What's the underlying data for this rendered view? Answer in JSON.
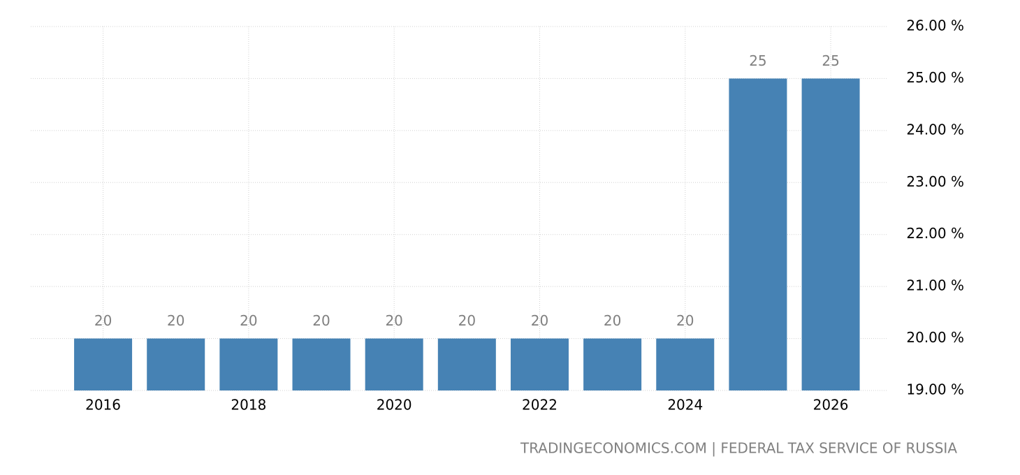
{
  "chart_data": {
    "type": "bar",
    "categories": [
      "2016",
      null,
      "2018",
      null,
      "2020",
      null,
      "2022",
      null,
      "2024",
      null,
      "2026"
    ],
    "values": [
      20,
      20,
      20,
      20,
      20,
      20,
      20,
      20,
      20,
      25,
      25
    ],
    "color": "#4682b4",
    "ylim": [
      19,
      26
    ],
    "yticks": [
      {
        "value": 19,
        "label": "19.00 %"
      },
      {
        "value": 20,
        "label": "20.00 %"
      },
      {
        "value": 21,
        "label": "21.00 %"
      },
      {
        "value": 22,
        "label": "22.00 %"
      },
      {
        "value": 23,
        "label": "23.00 %"
      },
      {
        "value": 24,
        "label": "24.00 %"
      },
      {
        "value": 25,
        "label": "25.00 %"
      },
      {
        "value": 26,
        "label": "26.00 %"
      }
    ],
    "grid": true,
    "source": "TRADINGECONOMICS.COM | FEDERAL TAX SERVICE OF RUSSIA"
  }
}
